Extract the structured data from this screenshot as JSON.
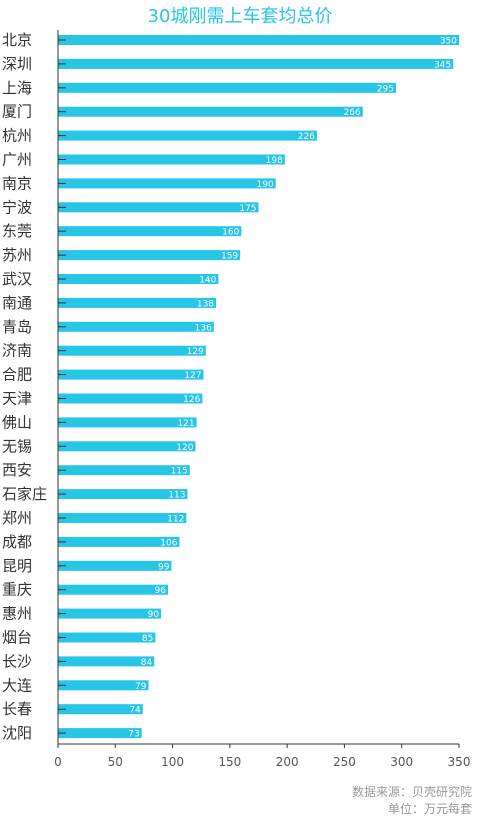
{
  "title": "30城刚需上车套均总价",
  "source_line": "数据来源：贝壳研究院",
  "unit_line": "单位：万元每套",
  "colors": {
    "bar": "#27c5e6",
    "axis": "#333333",
    "title": "#27c5e6"
  },
  "chart_data": {
    "type": "bar",
    "orientation": "horizontal",
    "title": "30城刚需上车套均总价",
    "xlabel": "",
    "ylabel": "",
    "xlim": [
      0,
      350
    ],
    "ticks": [
      0,
      50,
      100,
      150,
      200,
      250,
      300,
      350
    ],
    "grid": false,
    "categories": [
      "北京",
      "深圳",
      "上海",
      "厦门",
      "杭州",
      "广州",
      "南京",
      "宁波",
      "东莞",
      "苏州",
      "武汉",
      "南通",
      "青岛",
      "济南",
      "合肥",
      "天津",
      "佛山",
      "无锡",
      "西安",
      "石家庄",
      "郑州",
      "成都",
      "昆明",
      "重庆",
      "惠州",
      "烟台",
      "长沙",
      "大连",
      "长春",
      "沈阳"
    ],
    "values": [
      350,
      345,
      295,
      266,
      226,
      198,
      190,
      175,
      160,
      159,
      140,
      138,
      136,
      129,
      127,
      126,
      121,
      120,
      115,
      113,
      112,
      106,
      99,
      96,
      90,
      85,
      84,
      79,
      74,
      73
    ]
  }
}
